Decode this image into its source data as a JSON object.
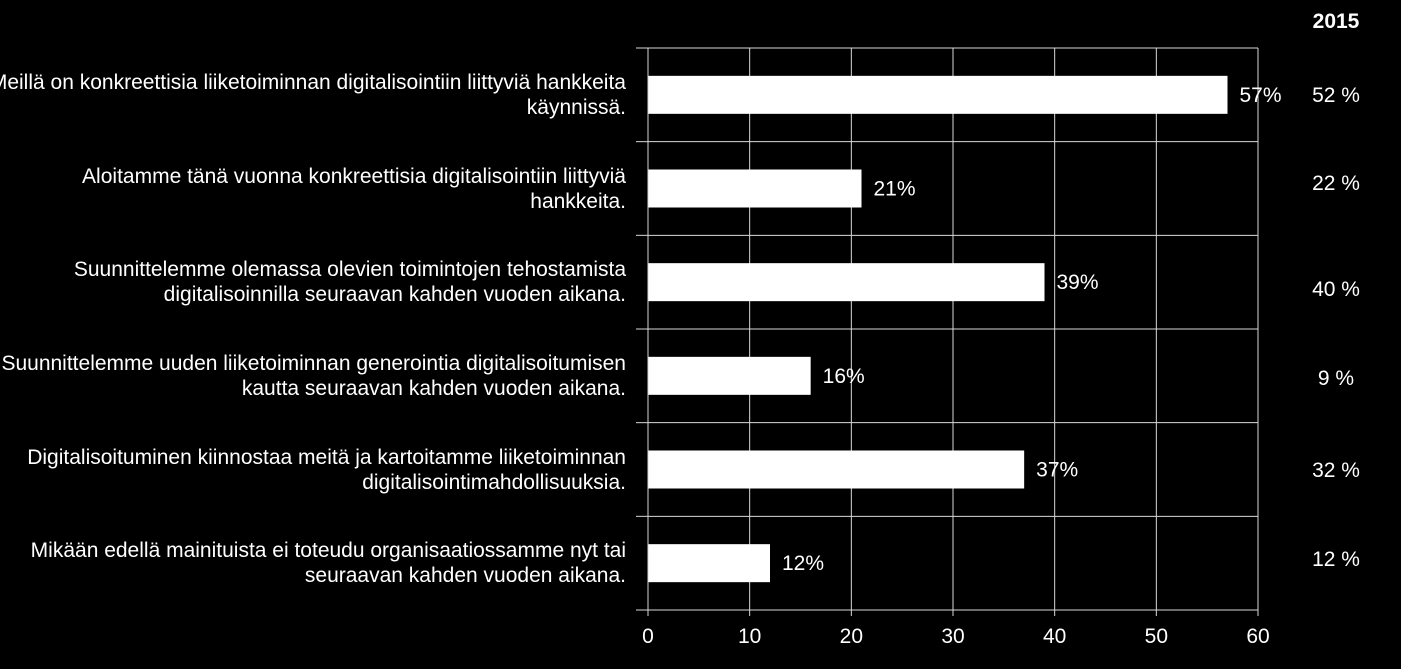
{
  "chart_data": {
    "type": "bar",
    "orientation": "horizontal",
    "categories": [
      "Meillä on konkreettisia liiketoiminnan digitalisointiin liittyviä hankkeita käynnissä.",
      "Aloitamme tänä vuonna konkreettisia digitalisointiin liittyviä hankkeita.",
      "Suunnittelemme olemassa olevien toimintojen tehostamista digitalisoinnilla seuraavan kahden vuoden aikana.",
      "Suunnittelemme uuden liiketoiminnan generointia digitalisoitumisen kautta seuraavan kahden vuoden aikana.",
      "Digitalisoituminen kiinnostaa meitä ja kartoitamme liiketoiminnan digitalisointimahdollisuuksia.",
      "Mikään edellä mainituista ei toteudu organisaatiossamme nyt tai seuraavan kahden vuoden aikana."
    ],
    "values": [
      57,
      21,
      39,
      16,
      37,
      12
    ],
    "data_labels": [
      "57%",
      "21%",
      "39%",
      "16%",
      "37%",
      "12%"
    ],
    "xlim": [
      0,
      60
    ],
    "xticks": [
      0,
      10,
      20,
      30,
      40,
      50,
      60
    ],
    "grid": true,
    "bar_color": "#ffffff",
    "background": "#000000",
    "comparison_column": {
      "header": "2015",
      "values": [
        "52 %",
        "22 %",
        "40 %",
        "9 %",
        "32 %",
        "12 %"
      ]
    }
  }
}
